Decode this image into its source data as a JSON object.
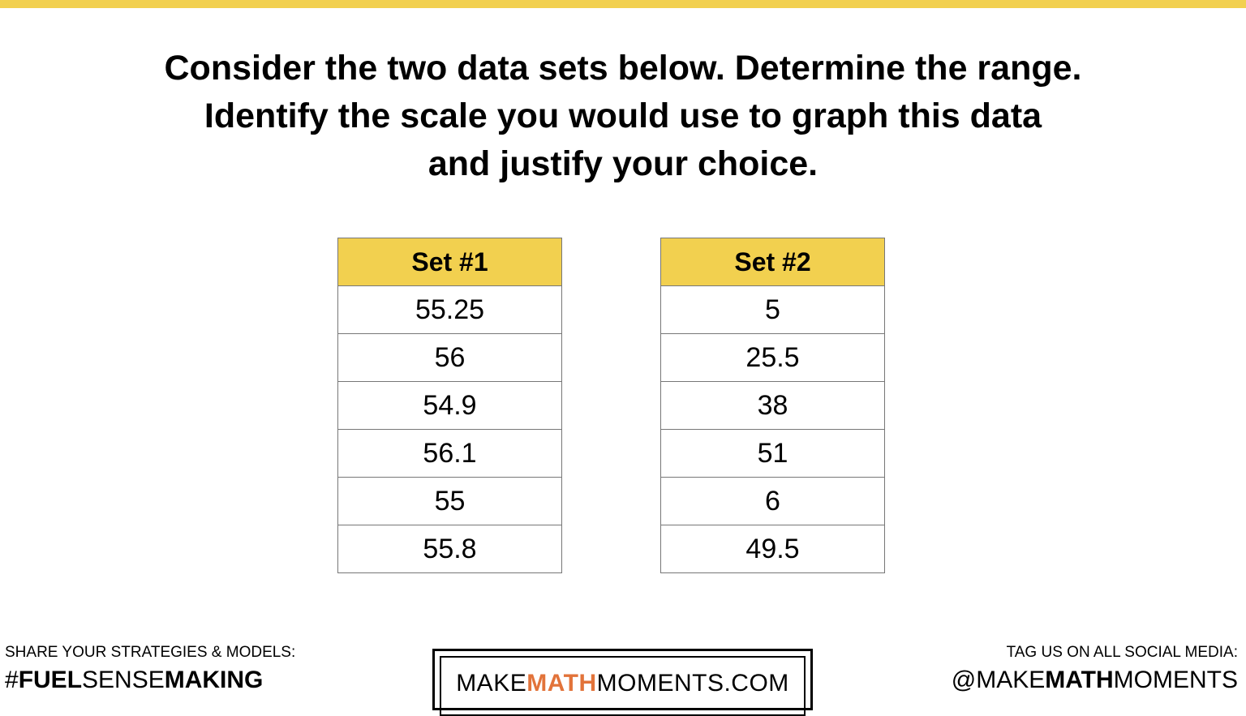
{
  "title": {
    "lines": [
      "Consider the two data sets below. Determine the range.",
      "Identify the scale you would use to graph this data",
      "and justify your choice."
    ]
  },
  "tables": [
    {
      "header": "Set #1",
      "rows": [
        "55.25",
        "56",
        "54.9",
        "56.1",
        "55",
        "55.8"
      ]
    },
    {
      "header": "Set #2",
      "rows": [
        "5",
        "25.5",
        "38",
        "51",
        "6",
        "49.5"
      ]
    }
  ],
  "footer": {
    "left": {
      "caption": "SHARE YOUR STRATEGIES & MODELS:",
      "hashtag": [
        "#",
        "FUEL",
        "SENSE",
        "MAKING"
      ]
    },
    "logo": [
      "MAKE",
      "MATH",
      "MOMENTS",
      ".COM"
    ],
    "right": {
      "caption": "TAG US ON ALL SOCIAL MEDIA:",
      "handle": [
        "@MAKE",
        "MATH",
        "MOMENTS"
      ]
    }
  }
}
